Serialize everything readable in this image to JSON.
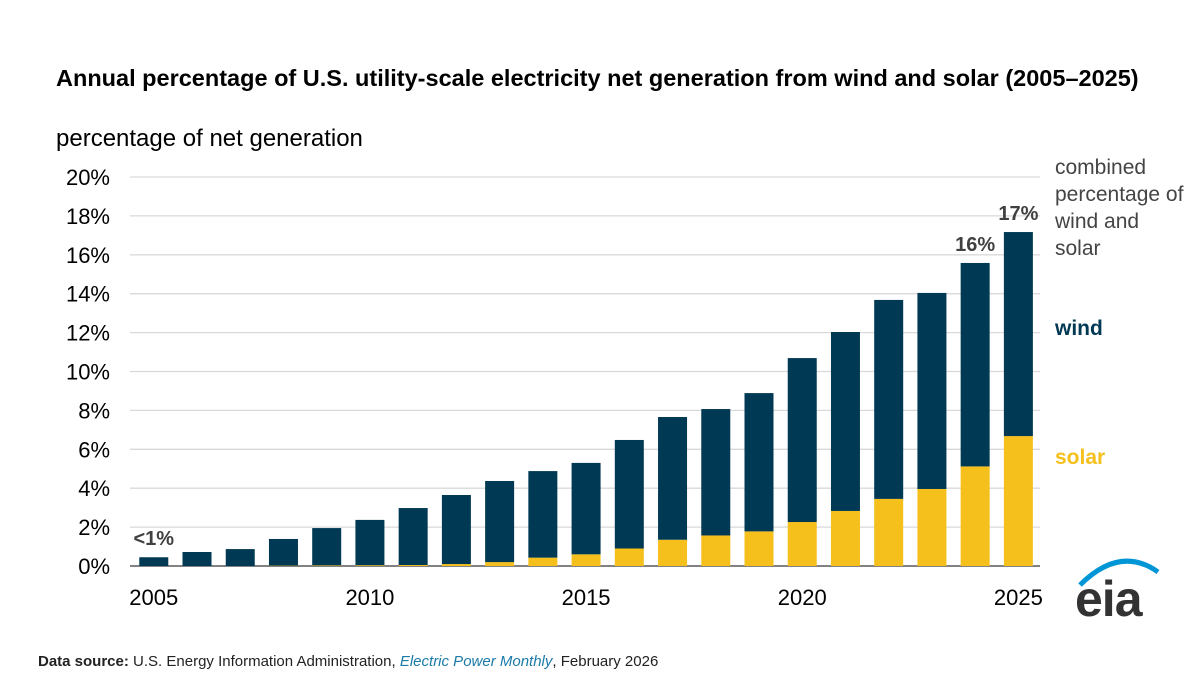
{
  "chart_data": {
    "type": "stacked_bar",
    "title": "Annual percentage of U.S. utility-scale electricity  net generation from wind and solar (2005–2025)",
    "subtitle": "percentage of net generation",
    "x": [
      2005,
      2006,
      2007,
      2008,
      2009,
      2010,
      2011,
      2012,
      2013,
      2014,
      2015,
      2016,
      2017,
      2018,
      2019,
      2020,
      2021,
      2022,
      2023,
      2024,
      2025
    ],
    "series": [
      {
        "name": "solar",
        "color": "#f5bf1c",
        "values": [
          0,
          0,
          0,
          0.02,
          0.03,
          0.04,
          0.05,
          0.1,
          0.2,
          0.43,
          0.6,
          0.9,
          1.35,
          1.57,
          1.78,
          2.26,
          2.83,
          3.45,
          3.96,
          5.12,
          6.68
        ]
      },
      {
        "name": "wind",
        "color": "#003953",
        "values": [
          0.45,
          0.72,
          0.87,
          1.37,
          1.92,
          2.33,
          2.93,
          3.55,
          4.17,
          4.45,
          4.7,
          5.58,
          6.31,
          6.5,
          7.11,
          8.43,
          9.2,
          10.23,
          10.08,
          10.46,
          10.49
        ]
      }
    ],
    "legend_note": "combined percentage of wind and solar",
    "annotations": [
      {
        "x": 2005,
        "text": "<1%"
      },
      {
        "x": 2024,
        "text": "16%"
      },
      {
        "x": 2025,
        "text": "17%"
      }
    ],
    "xlim": [
      2004.45,
      2025.5
    ],
    "xticks": [
      2005,
      2010,
      2015,
      2020,
      2025
    ],
    "ylim": [
      0,
      20
    ],
    "yticks": [
      {
        "value": 0,
        "label": "0%"
      },
      {
        "value": 2,
        "label": "2%"
      },
      {
        "value": 4,
        "label": "4%"
      },
      {
        "value": 6,
        "label": "6%"
      },
      {
        "value": 8,
        "label": "8%"
      },
      {
        "value": 10,
        "label": "10%"
      },
      {
        "value": 12,
        "label": "12%"
      },
      {
        "value": 14,
        "label": "14%"
      },
      {
        "value": 16,
        "label": "16%"
      },
      {
        "value": 18,
        "label": "18%"
      },
      {
        "value": 20,
        "label": "20%"
      }
    ],
    "grid": true
  },
  "source": {
    "label": "Data source:",
    "text": "U.S. Energy Information Administration, ",
    "publication": "Electric Power Monthly",
    "date": ", February 2026"
  },
  "logo": "eia"
}
